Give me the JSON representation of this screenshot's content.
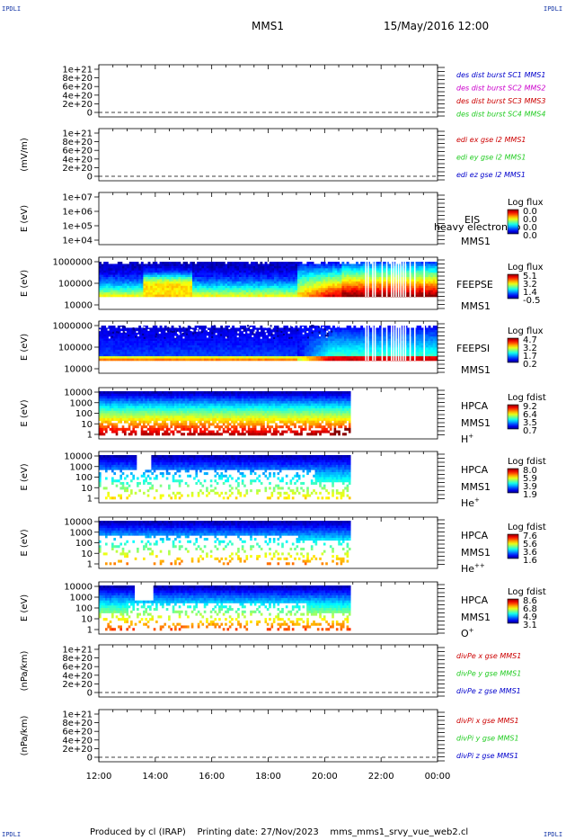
{
  "corner_label": "IPDLI",
  "header": {
    "spacecraft": "MMS1",
    "datetime": "15/May/2016 12:00"
  },
  "footer": {
    "produced_by": "Produced by cl (IRAP)",
    "printing_date": "Printing date: 27/Nov/2023",
    "script": "mms_mms1_srvy_vue_web2.cl"
  },
  "colors": {
    "mms1": "#0000cc",
    "mms2": "#cc00cc",
    "mms3": "#cc0000",
    "mms4": "#22cc22",
    "x": "#cc0000",
    "y": "#22cc22",
    "z": "#0000cc"
  },
  "chart_data": [
    {
      "type": "line",
      "ylabel": "",
      "yticks": [
        "1e+21",
        "8e+20",
        "6e+20",
        "4e+20",
        "2e+20",
        "0"
      ],
      "series": [
        {
          "name": "des dist burst SC1 MMS1"
        },
        {
          "name": "des dist burst SC2 MMS2"
        },
        {
          "name": "des dist burst SC3 MMS3"
        },
        {
          "name": "des dist burst SC4 MMS4"
        }
      ]
    },
    {
      "type": "line",
      "ylabel": "(mV/m)",
      "yticks": [
        "1e+21",
        "8e+20",
        "6e+20",
        "4e+20",
        "2e+20",
        "0"
      ],
      "series": [
        {
          "name": "edi ex gse l2 MMS1"
        },
        {
          "name": "edi ey gse l2 MMS1"
        },
        {
          "name": "edi ez gse l2 MMS1"
        }
      ]
    },
    {
      "type": "heatmap",
      "ylabel": "E (eV)",
      "yticks": [
        "1e+07",
        "1e+06",
        "1e+05",
        "1e+04"
      ],
      "yscale": "log",
      "labels": [
        "EIS",
        "MMS1"
      ],
      "overlay": "heavy electron to",
      "colorbar_title": "Log flux",
      "colorbar_ticks": [
        "0.0",
        "0.0",
        "0.0",
        "0.0"
      ]
    },
    {
      "type": "heatmap",
      "ylabel": "E (eV)",
      "yticks": [
        "1000000",
        "100000",
        "10000"
      ],
      "yscale": "log",
      "labels": [
        "FEEPSE",
        "MMS1"
      ],
      "colorbar_title": "Log flux",
      "colorbar_ticks": [
        "5.1",
        "3.2",
        "1.4",
        "-0.5"
      ]
    },
    {
      "type": "heatmap",
      "ylabel": "E (eV)",
      "yticks": [
        "1000000",
        "100000",
        "10000"
      ],
      "yscale": "log",
      "labels": [
        "FEEPSI",
        "MMS1"
      ],
      "colorbar_title": "Log flux",
      "colorbar_ticks": [
        "4.7",
        "3.2",
        "1.7",
        "0.2"
      ]
    },
    {
      "type": "heatmap",
      "ylabel": "E (eV)",
      "yticks": [
        "10000",
        "1000",
        "100",
        "10",
        "1"
      ],
      "yscale": "log",
      "labels": [
        "HPCA",
        "MMS1"
      ],
      "species": "H",
      "charge": "+",
      "colorbar_title": "Log fdist",
      "colorbar_ticks": [
        "9.2",
        "6.4",
        "3.5",
        "0.7"
      ]
    },
    {
      "type": "heatmap",
      "ylabel": "E (eV)",
      "yticks": [
        "10000",
        "1000",
        "100",
        "10",
        "1"
      ],
      "yscale": "log",
      "labels": [
        "HPCA",
        "MMS1"
      ],
      "species": "He",
      "charge": "+",
      "colorbar_title": "Log fdist",
      "colorbar_ticks": [
        "8.0",
        "5.9",
        "3.9",
        "1.9"
      ]
    },
    {
      "type": "heatmap",
      "ylabel": "E (eV)",
      "yticks": [
        "10000",
        "1000",
        "100",
        "10",
        "1"
      ],
      "yscale": "log",
      "labels": [
        "HPCA",
        "MMS1"
      ],
      "species": "He",
      "charge": "++",
      "colorbar_title": "Log fdist",
      "colorbar_ticks": [
        "7.6",
        "5.6",
        "3.6",
        "1.6"
      ]
    },
    {
      "type": "heatmap",
      "ylabel": "E (eV)",
      "yticks": [
        "10000",
        "1000",
        "100",
        "10",
        "1"
      ],
      "yscale": "log",
      "labels": [
        "HPCA",
        "MMS1"
      ],
      "species": "O",
      "charge": "+",
      "colorbar_title": "Log fdist",
      "colorbar_ticks": [
        "8.6",
        "6.8",
        "4.9",
        "3.1"
      ]
    },
    {
      "type": "line",
      "ylabel": "(nPa/km)",
      "yticks": [
        "1e+21",
        "8e+20",
        "6e+20",
        "4e+20",
        "2e+20",
        "0"
      ],
      "series": [
        {
          "name": "divPe x gse MMS1"
        },
        {
          "name": "divPe y gse MMS1"
        },
        {
          "name": "divPe z gse MMS1"
        }
      ]
    },
    {
      "type": "line",
      "ylabel": "(nPa/km)",
      "yticks": [
        "1e+21",
        "8e+20",
        "6e+20",
        "4e+20",
        "2e+20",
        "0"
      ],
      "series": [
        {
          "name": "divPi x gse MMS1"
        },
        {
          "name": "divPi y gse MMS1"
        },
        {
          "name": "divPi z gse MMS1"
        }
      ]
    }
  ],
  "x_axis": {
    "ticks": [
      "12:00",
      "14:00",
      "16:00",
      "18:00",
      "20:00",
      "22:00",
      "00:00"
    ],
    "data_end": "20:55"
  }
}
